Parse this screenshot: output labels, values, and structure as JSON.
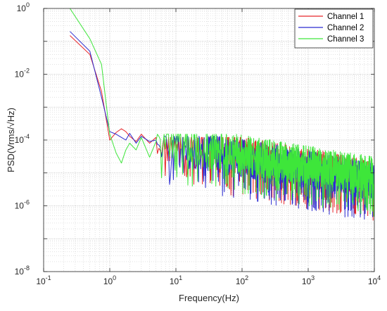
{
  "chart_data": {
    "type": "line",
    "xscale": "log",
    "yscale": "log",
    "xlim": [
      0.1,
      10000
    ],
    "ylim": [
      1e-08,
      1
    ],
    "xlabel": "Frequency(Hz)",
    "ylabel": "PSD(Vrms/√Hz)",
    "grid": "major and minor (dotted)",
    "legend_position": "top-right",
    "x_ticks": [
      {
        "base": "10",
        "exp": "-1"
      },
      {
        "base": "10",
        "exp": "0"
      },
      {
        "base": "10",
        "exp": "1"
      },
      {
        "base": "10",
        "exp": "2"
      },
      {
        "base": "10",
        "exp": "3"
      },
      {
        "base": "10",
        "exp": "4"
      }
    ],
    "y_ticks": [
      {
        "base": "10",
        "exp": "-8"
      },
      {
        "base": "10",
        "exp": "-6"
      },
      {
        "base": "10",
        "exp": "-4"
      },
      {
        "base": "10",
        "exp": "-2"
      },
      {
        "base": "10",
        "exp": "0"
      }
    ],
    "series": [
      {
        "name": "Channel 1",
        "color": "#e8262a",
        "points": [
          [
            0.25,
            0.15
          ],
          [
            0.5,
            0.04
          ],
          [
            0.75,
            0.003
          ],
          [
            1.0,
            0.0001
          ],
          [
            1.25,
            0.00017
          ],
          [
            1.5,
            0.00022
          ],
          [
            1.75,
            0.00018
          ],
          [
            2.0,
            0.00013
          ],
          [
            2.5,
            9e-05
          ],
          [
            3.0,
            0.00015
          ],
          [
            4.0,
            8e-05
          ],
          [
            5.0,
            0.00012
          ]
        ],
        "noise_level_at_10Hz": 8e-05,
        "noise_slope": -0.35,
        "noise_floor_band": [
          2e-07,
          0.00012
        ]
      },
      {
        "name": "Channel 2",
        "color": "#2b2bd0",
        "points": [
          [
            0.25,
            0.2
          ],
          [
            0.5,
            0.05
          ],
          [
            0.75,
            0.002
          ],
          [
            1.0,
            0.00018
          ],
          [
            1.25,
            0.00015
          ],
          [
            1.5,
            0.00012
          ],
          [
            1.75,
            0.0001
          ],
          [
            2.0,
            0.00016
          ],
          [
            2.5,
            8e-05
          ],
          [
            3.0,
            0.00013
          ],
          [
            4.0,
            9e-05
          ],
          [
            5.0,
            0.0001
          ]
        ],
        "noise_level_at_10Hz": 7e-05,
        "noise_slope": -0.35,
        "noise_floor_band": [
          2e-07,
          0.00013
        ]
      },
      {
        "name": "Channel 3",
        "color": "#3ee63a",
        "points": [
          [
            0.25,
            1.0
          ],
          [
            0.5,
            0.12
          ],
          [
            0.75,
            0.02
          ],
          [
            1.0,
            0.00015
          ],
          [
            1.25,
            4e-05
          ],
          [
            1.5,
            2e-05
          ],
          [
            1.75,
            5e-05
          ],
          [
            2.0,
            8e-05
          ],
          [
            2.5,
            5e-05
          ],
          [
            3.0,
            0.00012
          ],
          [
            4.0,
            3e-05
          ],
          [
            5.0,
            9e-05
          ]
        ],
        "noise_level_at_10Hz": 9e-05,
        "noise_slope": -0.33,
        "noise_floor_band": [
          3e-07,
          0.00015
        ]
      }
    ]
  }
}
